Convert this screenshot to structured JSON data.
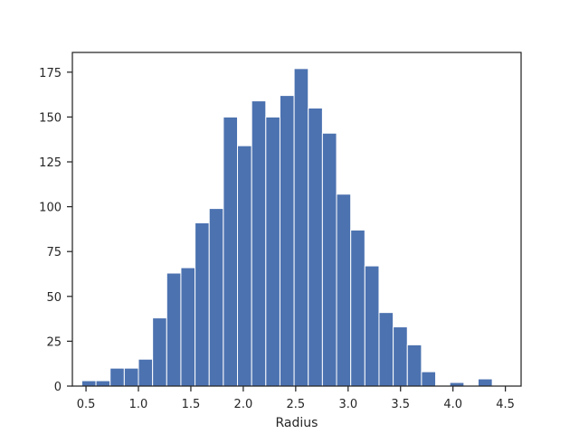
{
  "chart_data": {
    "type": "bar",
    "title": "",
    "xlabel": "Radius",
    "ylabel": "",
    "xlim": [
      0.37,
      4.65
    ],
    "ylim": [
      0,
      186
    ],
    "bar_color": "#4c72b0",
    "bar_edge_color": "#ffffff",
    "grid": false,
    "x_ticks": [
      {
        "value": 0.5,
        "label": "0.5"
      },
      {
        "value": 1.0,
        "label": "1.0"
      },
      {
        "value": 1.5,
        "label": "1.5"
      },
      {
        "value": 2.0,
        "label": "2.0"
      },
      {
        "value": 2.5,
        "label": "2.5"
      },
      {
        "value": 3.0,
        "label": "3.0"
      },
      {
        "value": 3.5,
        "label": "3.5"
      },
      {
        "value": 4.0,
        "label": "4.0"
      },
      {
        "value": 4.5,
        "label": "4.5"
      }
    ],
    "y_ticks": [
      {
        "value": 0,
        "label": "0"
      },
      {
        "value": 25,
        "label": "25"
      },
      {
        "value": 50,
        "label": "50"
      },
      {
        "value": 75,
        "label": "75"
      },
      {
        "value": 100,
        "label": "100"
      },
      {
        "value": 125,
        "label": "125"
      },
      {
        "value": 150,
        "label": "150"
      },
      {
        "value": 175,
        "label": "175"
      }
    ],
    "bins": [
      {
        "x0": 0.46,
        "x1": 0.595,
        "count": 3
      },
      {
        "x0": 0.595,
        "x1": 0.73,
        "count": 3
      },
      {
        "x0": 0.73,
        "x1": 0.865,
        "count": 10
      },
      {
        "x0": 0.865,
        "x1": 1.0,
        "count": 10
      },
      {
        "x0": 1.0,
        "x1": 1.135,
        "count": 15
      },
      {
        "x0": 1.135,
        "x1": 1.27,
        "count": 38
      },
      {
        "x0": 1.27,
        "x1": 1.405,
        "count": 63
      },
      {
        "x0": 1.405,
        "x1": 1.54,
        "count": 66
      },
      {
        "x0": 1.54,
        "x1": 1.675,
        "count": 91
      },
      {
        "x0": 1.675,
        "x1": 1.81,
        "count": 99
      },
      {
        "x0": 1.81,
        "x1": 1.945,
        "count": 150
      },
      {
        "x0": 1.945,
        "x1": 2.08,
        "count": 134
      },
      {
        "x0": 2.08,
        "x1": 2.215,
        "count": 159
      },
      {
        "x0": 2.215,
        "x1": 2.35,
        "count": 150
      },
      {
        "x0": 2.35,
        "x1": 2.485,
        "count": 162
      },
      {
        "x0": 2.485,
        "x1": 2.62,
        "count": 177
      },
      {
        "x0": 2.62,
        "x1": 2.755,
        "count": 155
      },
      {
        "x0": 2.755,
        "x1": 2.89,
        "count": 141
      },
      {
        "x0": 2.89,
        "x1": 3.025,
        "count": 107
      },
      {
        "x0": 3.025,
        "x1": 3.16,
        "count": 87
      },
      {
        "x0": 3.16,
        "x1": 3.295,
        "count": 67
      },
      {
        "x0": 3.295,
        "x1": 3.43,
        "count": 41
      },
      {
        "x0": 3.43,
        "x1": 3.565,
        "count": 33
      },
      {
        "x0": 3.565,
        "x1": 3.7,
        "count": 23
      },
      {
        "x0": 3.7,
        "x1": 3.835,
        "count": 8
      },
      {
        "x0": 3.835,
        "x1": 3.97,
        "count": 0
      },
      {
        "x0": 3.97,
        "x1": 4.105,
        "count": 2
      },
      {
        "x0": 4.105,
        "x1": 4.24,
        "count": 0
      },
      {
        "x0": 4.24,
        "x1": 4.375,
        "count": 4
      }
    ]
  }
}
